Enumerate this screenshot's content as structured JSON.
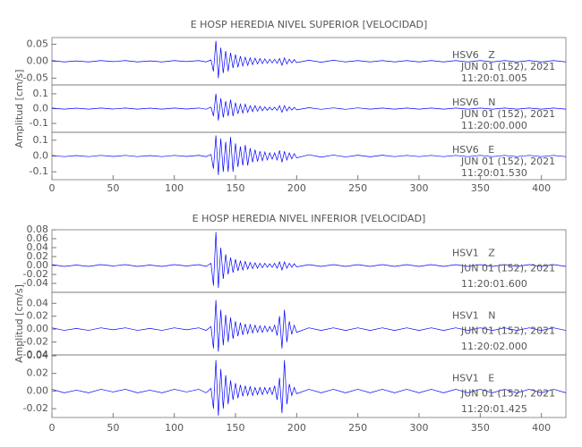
{
  "chart_data": [
    {
      "type": "line",
      "title": "E HOSP HEREDIA NIVEL SUPERIOR [VELOCIDAD]",
      "ylabel": "Amplitud [cm/s]",
      "xlim": [
        0,
        420
      ],
      "xticks": [
        0,
        50,
        100,
        150,
        200,
        250,
        300,
        350,
        400
      ],
      "x": [
        0,
        10,
        20,
        30,
        40,
        50,
        60,
        70,
        80,
        90,
        100,
        110,
        120,
        126,
        130,
        132,
        134,
        136,
        138,
        140,
        142,
        144,
        146,
        148,
        150,
        152,
        154,
        156,
        158,
        160,
        162,
        164,
        166,
        168,
        170,
        172,
        174,
        176,
        178,
        180,
        182,
        184,
        186,
        188,
        190,
        192,
        194,
        196,
        198,
        200,
        210,
        220,
        230,
        240,
        250,
        260,
        270,
        280,
        290,
        300,
        310,
        320,
        330,
        340,
        350,
        360,
        370,
        380,
        390,
        400,
        410,
        420
      ],
      "series": [
        {
          "name": "HSV6   Z",
          "date": "JUN 01 (152), 2021",
          "time": "11:20:01.005",
          "color": "#0000ff",
          "ylim": [
            -0.07,
            0.07
          ],
          "yticks": [
            -0.05,
            {
              "value": 0,
              "label": "0.00"
            },
            0.05
          ],
          "values": [
            0.002,
            -0.002,
            0.001,
            -0.002,
            0.002,
            -0.001,
            0.002,
            -0.002,
            0.001,
            -0.002,
            0.002,
            -0.001,
            0.002,
            -0.002,
            0.004,
            -0.03,
            0.06,
            -0.05,
            0.04,
            -0.035,
            0.03,
            -0.03,
            0.025,
            -0.02,
            0.02,
            -0.018,
            0.015,
            -0.014,
            0.012,
            -0.012,
            0.01,
            -0.01,
            0.009,
            -0.008,
            0.008,
            -0.007,
            0.007,
            -0.006,
            0.006,
            -0.005,
            0.006,
            -0.006,
            0.008,
            -0.012,
            0.01,
            -0.008,
            0.006,
            -0.005,
            0.005,
            -0.004,
            0.003,
            -0.003,
            0.003,
            -0.002,
            0.002,
            -0.002,
            0.002,
            -0.002,
            0.002,
            -0.002,
            0.002,
            -0.002,
            0.002,
            -0.002,
            0.002,
            -0.002,
            0.002,
            -0.002,
            0.002,
            -0.002,
            0.002,
            -0.002
          ]
        },
        {
          "name": "HSV6   N",
          "date": "JUN 01 (152), 2021",
          "time": "11:20:00.000",
          "color": "#0000ff",
          "ylim": [
            -0.16,
            0.16
          ],
          "yticks": [
            -0.1,
            {
              "value": 0,
              "label": "0.0"
            },
            0.1
          ],
          "values": [
            0.004,
            -0.004,
            0.003,
            -0.004,
            0.004,
            -0.003,
            0.004,
            -0.004,
            0.003,
            -0.004,
            0.004,
            -0.003,
            0.004,
            -0.004,
            0.01,
            -0.05,
            0.1,
            -0.08,
            0.07,
            -0.06,
            0.05,
            -0.05,
            0.06,
            -0.05,
            0.04,
            -0.035,
            0.03,
            -0.03,
            0.03,
            -0.025,
            0.02,
            -0.02,
            0.02,
            -0.018,
            0.015,
            -0.014,
            0.012,
            -0.012,
            0.01,
            -0.01,
            0.01,
            -0.012,
            0.02,
            -0.025,
            0.02,
            -0.015,
            0.012,
            -0.01,
            0.008,
            -0.008,
            0.006,
            -0.005,
            0.005,
            -0.005,
            0.005,
            -0.004,
            0.004,
            -0.004,
            0.004,
            -0.004,
            0.004,
            -0.004,
            0.004,
            -0.004,
            0.004,
            -0.004,
            0.004,
            -0.004,
            0.004,
            -0.004,
            0.004,
            -0.004
          ]
        },
        {
          "name": "HSV6   E",
          "date": "JUN 01 (152), 2021",
          "time": "11:20:01.530",
          "color": "#0000ff",
          "ylim": [
            -0.15,
            0.15
          ],
          "yticks": [
            -0.1,
            {
              "value": 0,
              "label": "0.0"
            },
            0.1
          ],
          "values": [
            0.004,
            -0.004,
            0.003,
            -0.004,
            0.004,
            -0.003,
            0.004,
            -0.004,
            0.003,
            -0.004,
            0.004,
            -0.003,
            0.004,
            -0.004,
            0.01,
            -0.08,
            0.13,
            -0.12,
            0.11,
            -0.1,
            0.09,
            -0.1,
            0.12,
            -0.1,
            0.08,
            -0.07,
            0.06,
            -0.06,
            0.07,
            -0.06,
            0.05,
            -0.04,
            0.04,
            -0.035,
            0.03,
            -0.03,
            0.025,
            -0.025,
            0.02,
            -0.02,
            0.02,
            -0.025,
            0.035,
            -0.04,
            0.03,
            -0.025,
            0.02,
            -0.018,
            0.015,
            -0.012,
            0.008,
            -0.007,
            0.006,
            -0.006,
            0.005,
            -0.005,
            0.005,
            -0.004,
            0.004,
            -0.004,
            0.004,
            -0.004,
            0.004,
            -0.004,
            0.004,
            -0.004,
            0.004,
            -0.004,
            0.004,
            -0.004,
            0.004,
            -0.004
          ]
        }
      ]
    },
    {
      "type": "line",
      "title": "E HOSP HEREDIA NIVEL INFERIOR [VELOCIDAD]",
      "ylabel": "Amplitud [cm/s]",
      "xlim": [
        0,
        420
      ],
      "xticks": [
        0,
        50,
        100,
        150,
        200,
        250,
        300,
        350,
        400
      ],
      "x": [
        0,
        10,
        20,
        30,
        40,
        50,
        60,
        70,
        80,
        90,
        100,
        110,
        120,
        126,
        130,
        132,
        134,
        136,
        138,
        140,
        142,
        144,
        146,
        148,
        150,
        152,
        154,
        156,
        158,
        160,
        162,
        164,
        166,
        168,
        170,
        172,
        174,
        176,
        178,
        180,
        182,
        184,
        186,
        188,
        190,
        192,
        194,
        196,
        198,
        200,
        210,
        220,
        230,
        240,
        250,
        260,
        270,
        280,
        290,
        300,
        310,
        320,
        330,
        340,
        350,
        360,
        370,
        380,
        390,
        400,
        410,
        420
      ],
      "series": [
        {
          "name": "HSV1   Z",
          "date": "JUN 01 (152), 2021",
          "time": "11:20:01.600",
          "color": "#0000ff",
          "ylim": [
            -0.06,
            0.08
          ],
          "yticks": [
            0.08,
            0.06,
            0.04,
            0.02,
            {
              "value": 0,
              "label": "0.00"
            },
            -0.02,
            -0.04
          ],
          "values": [
            0.002,
            -0.002,
            0.001,
            -0.002,
            0.002,
            -0.001,
            0.002,
            -0.002,
            0.001,
            -0.002,
            0.002,
            -0.001,
            0.002,
            -0.002,
            0.005,
            -0.045,
            0.075,
            -0.05,
            0.04,
            -0.03,
            0.025,
            -0.02,
            0.018,
            -0.016,
            0.014,
            -0.012,
            0.01,
            -0.01,
            0.009,
            -0.008,
            0.007,
            -0.007,
            0.006,
            -0.006,
            0.005,
            -0.005,
            0.005,
            -0.004,
            0.004,
            -0.004,
            0.005,
            -0.006,
            0.008,
            -0.01,
            0.008,
            -0.006,
            0.005,
            -0.004,
            0.004,
            -0.003,
            0.002,
            -0.002,
            0.002,
            -0.002,
            0.002,
            -0.002,
            0.002,
            -0.002,
            0.002,
            -0.002,
            0.002,
            -0.002,
            0.002,
            -0.002,
            0.002,
            -0.002,
            0.002,
            -0.002,
            0.002,
            -0.002,
            0.002,
            -0.002
          ]
        },
        {
          "name": "HSV1   N",
          "date": "JUN 01 (152), 2021",
          "time": "11:20:02.000",
          "color": "#0000ff",
          "ylim": [
            -0.04,
            0.057
          ],
          "yticks": [
            0.04,
            0.02,
            {
              "value": 0,
              "label": "0.00"
            },
            -0.02,
            -0.04
          ],
          "values": [
            0.002,
            -0.002,
            0.001,
            -0.002,
            0.002,
            -0.001,
            0.002,
            -0.002,
            0.001,
            -0.002,
            0.002,
            -0.001,
            0.002,
            -0.002,
            0.004,
            -0.03,
            0.045,
            -0.035,
            0.03,
            -0.025,
            0.022,
            -0.02,
            0.018,
            -0.015,
            0.012,
            -0.011,
            0.01,
            -0.009,
            0.008,
            -0.007,
            0.007,
            -0.006,
            0.006,
            -0.005,
            0.005,
            -0.005,
            0.005,
            -0.004,
            0.004,
            -0.004,
            0.006,
            -0.01,
            0.02,
            -0.03,
            0.03,
            -0.02,
            0.012,
            -0.008,
            0.006,
            -0.005,
            0.002,
            -0.002,
            0.002,
            -0.002,
            0.002,
            -0.002,
            0.002,
            -0.002,
            0.002,
            -0.002,
            0.002,
            -0.002,
            0.002,
            -0.002,
            0.002,
            -0.002,
            0.002,
            -0.002,
            0.002,
            -0.002,
            0.002,
            -0.002
          ]
        },
        {
          "name": "HSV1   E",
          "date": "JUN 01 (152), 2021",
          "time": "11:20:01.425",
          "color": "#0000ff",
          "ylim": [
            -0.03,
            0.041
          ],
          "yticks": [
            0.04,
            0.02,
            {
              "value": 0,
              "label": "0.00"
            },
            -0.02
          ],
          "values": [
            0.002,
            -0.002,
            0.001,
            -0.002,
            0.002,
            -0.001,
            0.002,
            -0.002,
            0.001,
            -0.002,
            0.002,
            -0.001,
            0.002,
            -0.002,
            0.003,
            -0.02,
            0.035,
            -0.028,
            0.025,
            -0.02,
            0.018,
            -0.015,
            0.012,
            -0.01,
            0.009,
            -0.008,
            0.007,
            -0.006,
            0.006,
            -0.005,
            0.005,
            -0.005,
            0.004,
            -0.004,
            0.004,
            -0.004,
            0.004,
            -0.003,
            0.004,
            -0.004,
            0.006,
            -0.01,
            0.015,
            -0.025,
            0.035,
            -0.015,
            0.008,
            -0.005,
            0.004,
            -0.003,
            0.002,
            -0.002,
            0.002,
            -0.002,
            0.002,
            -0.002,
            0.002,
            -0.002,
            0.002,
            -0.002,
            0.002,
            -0.002,
            0.002,
            -0.002,
            0.002,
            -0.002,
            0.002,
            -0.002,
            0.002,
            -0.002,
            0.002,
            -0.002
          ]
        }
      ]
    }
  ]
}
